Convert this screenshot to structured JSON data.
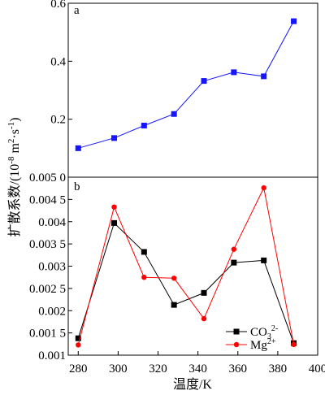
{
  "chart_data": [
    {
      "type": "line",
      "panel_label": "a",
      "x": [
        280,
        298,
        313,
        328,
        343,
        358,
        373,
        388
      ],
      "ylim": [
        0.0,
        0.6
      ],
      "yticks": [
        0.2,
        0.4,
        0.6
      ],
      "ytick_labels": [
        "0.2",
        "0.4",
        "0.6"
      ],
      "series": [
        {
          "values": [
            0.1,
            0.135,
            0.178,
            0.218,
            0.332,
            0.362,
            0.348,
            0.538
          ],
          "color": "#1515ff",
          "marker": "square"
        }
      ]
    },
    {
      "type": "line",
      "panel_label": "b",
      "x": [
        280,
        298,
        313,
        328,
        343,
        358,
        373,
        388
      ],
      "ylim": [
        0.001,
        0.005
      ],
      "yticks": [
        0.001,
        0.0015,
        0.002,
        0.0025,
        0.003,
        0.0035,
        0.004,
        0.0045,
        0.005
      ],
      "ytick_labels": [
        "0.001",
        "0.001 5",
        "0.002",
        "0.002 5",
        "0.003",
        "0.003 5",
        "0.004",
        "0.004 5",
        "0.005 0"
      ],
      "legend_position": "bottom-right",
      "series": [
        {
          "name_base": "CO",
          "name_sub": "3",
          "name_sup": "2-",
          "color": "#000000",
          "marker": "square",
          "values": [
            0.00138,
            0.00397,
            0.00332,
            0.00213,
            0.0024,
            0.00308,
            0.00313,
            0.00127
          ]
        },
        {
          "name_base": "Mg",
          "name_sub": "",
          "name_sup": "2+",
          "color": "#ff0000",
          "marker": "circle",
          "values": [
            0.00123,
            0.00433,
            0.00275,
            0.00273,
            0.00182,
            0.00338,
            0.00476,
            0.00124
          ]
        }
      ]
    }
  ],
  "axes": {
    "xlim": [
      275,
      400
    ],
    "xticks": [
      280,
      300,
      320,
      340,
      360,
      380,
      400
    ],
    "xtick_labels": [
      "280",
      "300",
      "320",
      "340",
      "360",
      "380",
      "400"
    ],
    "xlabel": "温度/K",
    "ylabel_main": "扩散系数/(10",
    "ylabel_exp1": "-8",
    "ylabel_mid": " m",
    "ylabel_exp2": "2",
    "ylabel_mid2": "·s",
    "ylabel_exp3": "-1",
    "ylabel_end": ")"
  }
}
